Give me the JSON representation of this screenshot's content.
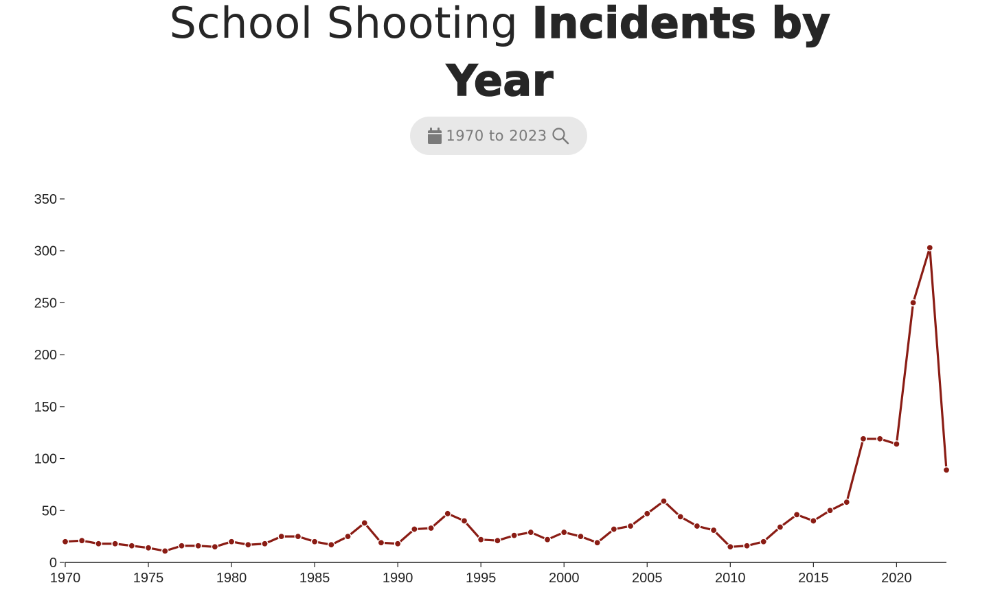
{
  "header": {
    "title_regular": "School Shooting ",
    "title_bold_1": "Incidents by",
    "title_bold_2": "Year",
    "date_filter_label": "1970 to 2023",
    "calendar_icon": "calendar-icon",
    "search_icon": "search-icon"
  },
  "chart_data": {
    "type": "line",
    "title": "School Shooting Incidents by Year",
    "x": [
      1970,
      1971,
      1972,
      1973,
      1974,
      1975,
      1976,
      1977,
      1978,
      1979,
      1980,
      1981,
      1982,
      1983,
      1984,
      1985,
      1986,
      1987,
      1988,
      1989,
      1990,
      1991,
      1992,
      1993,
      1994,
      1995,
      1996,
      1997,
      1998,
      1999,
      2000,
      2001,
      2002,
      2003,
      2004,
      2005,
      2006,
      2007,
      2008,
      2009,
      2010,
      2011,
      2012,
      2013,
      2014,
      2015,
      2016,
      2017,
      2018,
      2019,
      2020,
      2021,
      2022,
      2023
    ],
    "series": [
      {
        "values": [
          20,
          21,
          18,
          18,
          16,
          14,
          11,
          16,
          16,
          15,
          20,
          17,
          18,
          25,
          25,
          20,
          17,
          25,
          38,
          19,
          18,
          32,
          33,
          47,
          40,
          22,
          21,
          26,
          29,
          22,
          29,
          25,
          19,
          32,
          35,
          47,
          59,
          44,
          35,
          31,
          15,
          16,
          20,
          34,
          46,
          40,
          50,
          58,
          119,
          119,
          114,
          250,
          303,
          89
        ],
        "color": "#8a1c14"
      }
    ],
    "xticks": [
      1970,
      1975,
      1980,
      1985,
      1990,
      1995,
      2000,
      2005,
      2010,
      2015,
      2020
    ],
    "yticks": [
      0,
      50,
      100,
      150,
      200,
      250,
      300,
      350
    ],
    "xlim": [
      1970,
      2023
    ],
    "ylim": [
      0,
      350
    ],
    "grid": false,
    "legend": "none"
  }
}
